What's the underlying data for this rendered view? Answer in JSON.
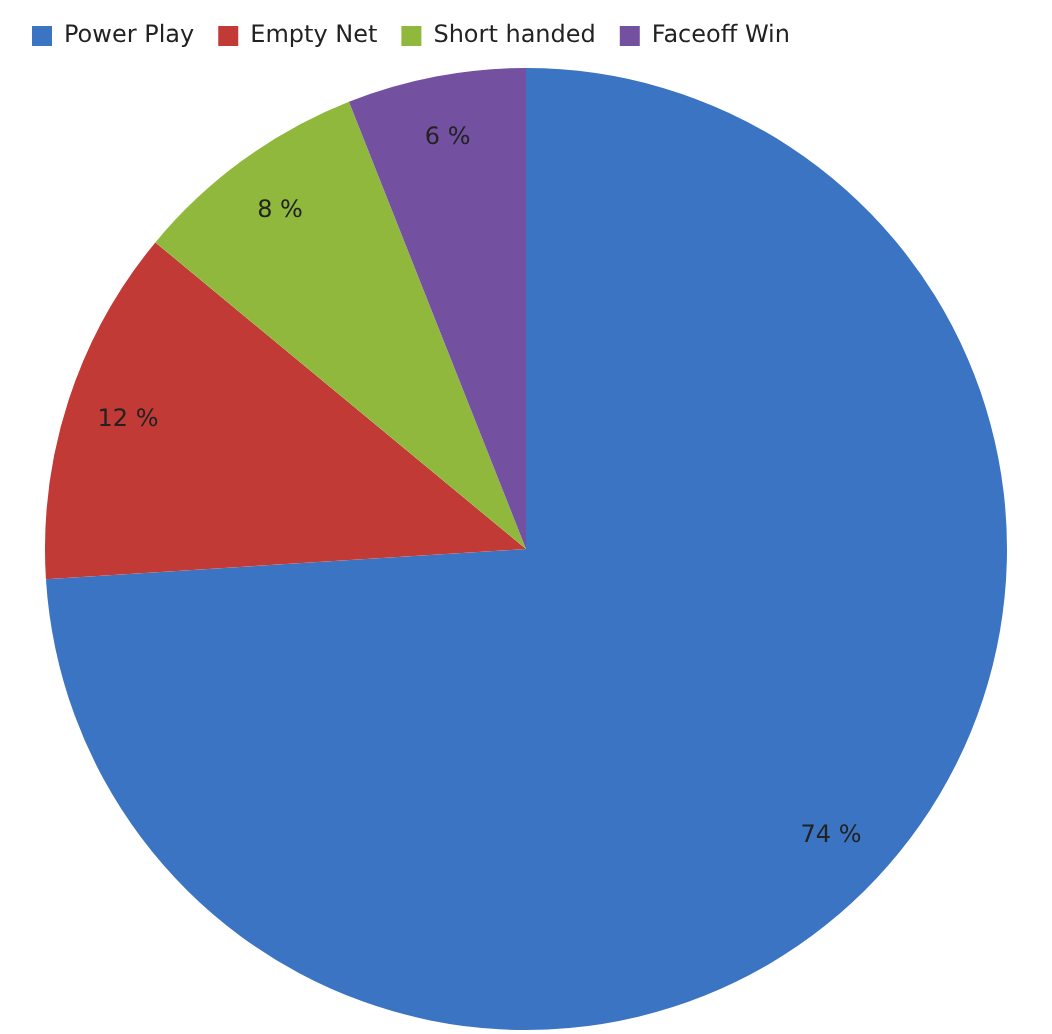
{
  "chart_data": {
    "type": "pie",
    "categories": [
      "Power Play",
      "Empty Net",
      "Short handed",
      "Faceoff Win"
    ],
    "values": [
      74,
      12,
      8,
      6
    ],
    "colors": [
      "#3a74c2",
      "#c23a36",
      "#8fb83c",
      "#7450a0"
    ],
    "value_labels": [
      "74 %",
      "12 %",
      "8 %",
      "6 %"
    ],
    "legend": "top"
  }
}
